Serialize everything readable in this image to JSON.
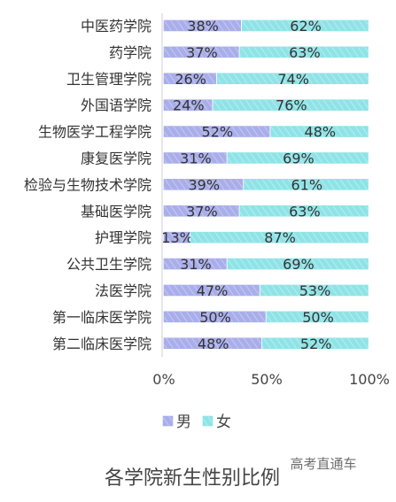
{
  "chart_data": {
    "type": "bar",
    "orientation": "horizontal",
    "stacked": "percent",
    "title": "各学院新生性别比例",
    "categories": [
      "中医药学院",
      "药学院",
      "卫生管理学院",
      "外国语学院",
      "生物医学工程学院",
      "康复医学院",
      "检验与生物技术学院",
      "基础医学院",
      "护理学院",
      "公共卫生学院",
      "法医学院",
      "第一临床医学院",
      "第二临床医学院"
    ],
    "series": [
      {
        "name": "男",
        "values": [
          38,
          37,
          26,
          24,
          52,
          31,
          39,
          37,
          13,
          31,
          47,
          50,
          48
        ],
        "color": "#a9aeea"
      },
      {
        "name": "女",
        "values": [
          62,
          63,
          74,
          76,
          48,
          69,
          61,
          63,
          87,
          69,
          53,
          50,
          52
        ],
        "color": "#8fe3e6"
      }
    ],
    "value_suffix": "%",
    "x_ticks": [
      "0%",
      "50%",
      "100%"
    ],
    "xlim": [
      0,
      100
    ],
    "legend": "bottom",
    "grid": false
  },
  "watermark": "高考直通车"
}
